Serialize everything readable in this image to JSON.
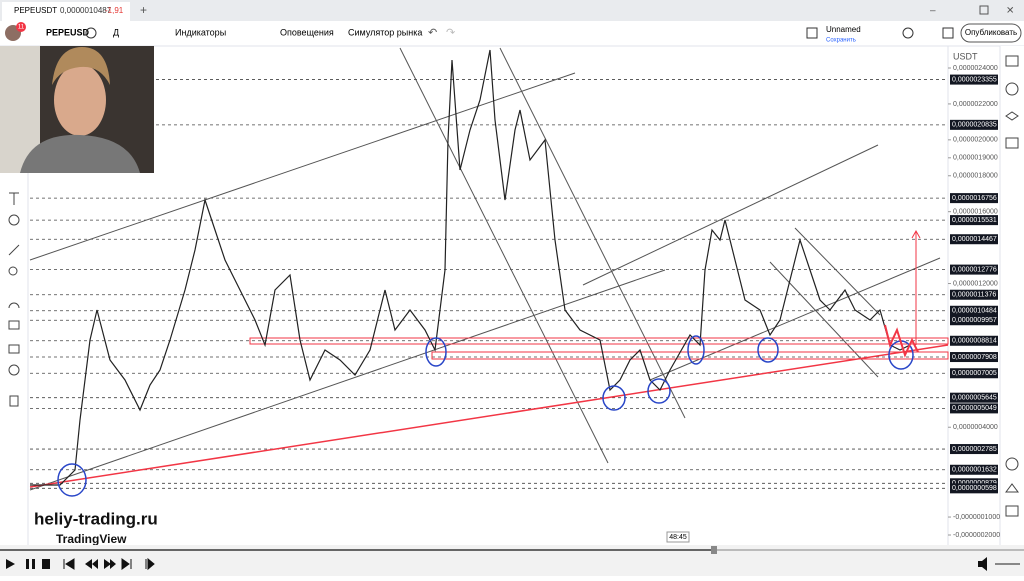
{
  "browser_tab": {
    "title": "PEPEUSDT",
    "price": "0,0000010487",
    "change": "-1,91"
  },
  "toolbar": {
    "notifications": "11",
    "symbol": "PEPEUSD",
    "interval": "Д",
    "indicators": "Индикаторы",
    "alerts": "Оповещения",
    "replay": "Симулятор рынка",
    "layout_name": "Unnamed",
    "save": "Сохранить",
    "publish": "Опубликовать"
  },
  "price_axis": {
    "currency": "USDT",
    "levels": [
      {
        "value": 2.4e-06,
        "label": "0,0000024000",
        "boxed": false
      },
      {
        "value": 2.3355e-06,
        "label": "0,0000023355",
        "boxed": true
      },
      {
        "value": 2.2e-06,
        "label": "0,0000022000",
        "boxed": false
      },
      {
        "value": 2.0835e-06,
        "label": "0,0000020835",
        "boxed": true
      },
      {
        "value": 2e-06,
        "label": "0,0000020000",
        "boxed": false
      },
      {
        "value": 1.9e-06,
        "label": "0,0000019000",
        "boxed": false
      },
      {
        "value": 1.8e-06,
        "label": "0,0000018000",
        "boxed": false
      },
      {
        "value": 1.6756e-06,
        "label": "0,0000016756",
        "boxed": true
      },
      {
        "value": 1.6e-06,
        "label": "0,0000016000",
        "boxed": false
      },
      {
        "value": 1.5531e-06,
        "label": "0,0000015531",
        "boxed": true
      },
      {
        "value": 1.4467e-06,
        "label": "0,0000014467",
        "boxed": true
      },
      {
        "value": 1.2776e-06,
        "label": "0,0000012776",
        "boxed": true
      },
      {
        "value": 1.2e-06,
        "label": "0,0000012000",
        "boxed": false
      },
      {
        "value": 1.1376e-06,
        "label": "0,0000011376",
        "boxed": true
      },
      {
        "value": 1.0484e-06,
        "label": "0,0000010484",
        "boxed": true
      },
      {
        "value": 9.957e-07,
        "label": "0,0000009957",
        "boxed": true
      },
      {
        "value": 8.814e-07,
        "label": "0,0000008814",
        "boxed": true
      },
      {
        "value": 7.908e-07,
        "label": "0,0000007908",
        "boxed": true
      },
      {
        "value": 7.005e-07,
        "label": "0,0000007005",
        "boxed": true
      },
      {
        "value": 5.645e-07,
        "label": "0,0000005645",
        "boxed": true
      },
      {
        "value": 5.049e-07,
        "label": "0,0000005049",
        "boxed": true
      },
      {
        "value": 4e-07,
        "label": "0,0000004000",
        "boxed": false
      },
      {
        "value": 2.785e-07,
        "label": "0,0000002785",
        "boxed": true
      },
      {
        "value": 1.632e-07,
        "label": "0,0000001632",
        "boxed": true
      },
      {
        "value": 8.79e-08,
        "label": "0,0000000879",
        "boxed": true
      },
      {
        "value": 5.98e-08,
        "label": "0,0000000598",
        "boxed": true
      },
      {
        "value": -1e-07,
        "label": "-0,0000001000",
        "boxed": false
      },
      {
        "value": -2e-07,
        "label": "-0,0000002000",
        "boxed": false
      }
    ]
  },
  "watermark": {
    "site": "heliy-trading.ru",
    "brand": "TradingView"
  },
  "crosshair_time": "48:45"
}
